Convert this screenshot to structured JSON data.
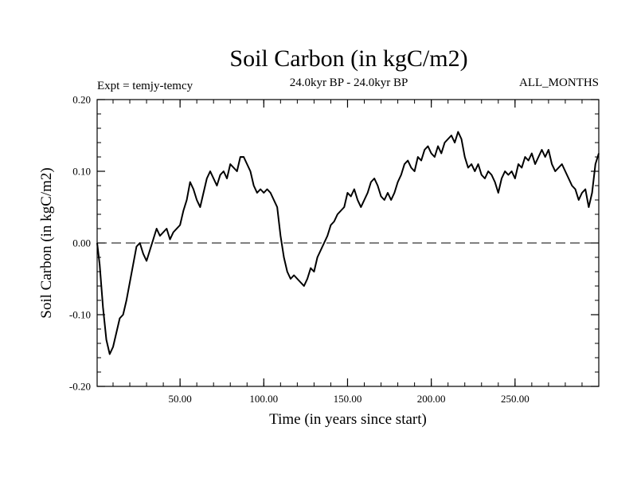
{
  "chart_data": {
    "type": "line",
    "title": "Soil Carbon (in kgC/m2)",
    "subtitle_left": "Expt = temjy-temcy",
    "subtitle_center": "24.0kyr BP - 24.0kyr BP",
    "subtitle_right": "ALL_MONTHS",
    "xlabel": "Time (in years since start)",
    "ylabel": "Soil Carbon (in kgC/m2)",
    "xlim": [
      0.5,
      300
    ],
    "ylim": [
      -0.2,
      0.2
    ],
    "x_ticks": [
      50,
      100,
      150,
      200,
      250
    ],
    "x_tick_labels": [
      "50.00",
      "100.00",
      "150.00",
      "200.00",
      "250.00"
    ],
    "x_minor_step": 10,
    "y_ticks": [
      -0.2,
      -0.1,
      0.0,
      0.1,
      0.2
    ],
    "y_tick_labels": [
      "-0.20",
      "-0.10",
      "0.00",
      "0.10",
      "0.20"
    ],
    "y_minor_step": 0.02,
    "reference_line": {
      "y": 0.0,
      "style": "dashed"
    },
    "grid": false,
    "colors": {
      "line": "#000000",
      "axes": "#000000",
      "background": "#ffffff"
    },
    "series": [
      {
        "name": "Soil Carbon",
        "x": [
          0.5,
          2,
          4,
          6,
          8,
          10,
          12,
          14,
          16,
          18,
          20,
          22,
          24,
          26,
          28,
          30,
          32,
          34,
          36,
          38,
          40,
          42,
          44,
          46,
          48,
          50,
          52,
          54,
          56,
          58,
          60,
          62,
          64,
          66,
          68,
          70,
          72,
          74,
          76,
          78,
          80,
          82,
          84,
          86,
          88,
          90,
          92,
          94,
          96,
          98,
          100,
          102,
          104,
          106,
          108,
          110,
          112,
          114,
          116,
          118,
          120,
          122,
          124,
          126,
          128,
          130,
          132,
          134,
          136,
          138,
          140,
          142,
          144,
          146,
          148,
          150,
          152,
          154,
          156,
          158,
          160,
          162,
          164,
          166,
          168,
          170,
          172,
          174,
          176,
          178,
          180,
          182,
          184,
          186,
          188,
          190,
          192,
          194,
          196,
          198,
          200,
          202,
          204,
          206,
          208,
          210,
          212,
          214,
          216,
          218,
          220,
          222,
          224,
          226,
          228,
          230,
          232,
          234,
          236,
          238,
          240,
          242,
          244,
          246,
          248,
          250,
          252,
          254,
          256,
          258,
          260,
          262,
          264,
          266,
          268,
          270,
          272,
          274,
          276,
          278,
          280,
          282,
          284,
          286,
          288,
          290,
          292,
          294,
          296,
          298,
          300
        ],
        "values": [
          0.0,
          -0.03,
          -0.09,
          -0.135,
          -0.155,
          -0.145,
          -0.125,
          -0.105,
          -0.1,
          -0.08,
          -0.055,
          -0.03,
          -0.005,
          0.0,
          -0.015,
          -0.025,
          -0.01,
          0.005,
          0.02,
          0.01,
          0.015,
          0.02,
          0.005,
          0.015,
          0.02,
          0.025,
          0.045,
          0.06,
          0.085,
          0.075,
          0.06,
          0.05,
          0.07,
          0.09,
          0.1,
          0.09,
          0.08,
          0.095,
          0.1,
          0.09,
          0.11,
          0.105,
          0.1,
          0.12,
          0.12,
          0.11,
          0.1,
          0.08,
          0.07,
          0.075,
          0.07,
          0.075,
          0.07,
          0.06,
          0.05,
          0.01,
          -0.02,
          -0.04,
          -0.05,
          -0.045,
          -0.05,
          -0.055,
          -0.06,
          -0.05,
          -0.035,
          -0.04,
          -0.02,
          -0.01,
          0.0,
          0.01,
          0.025,
          0.03,
          0.04,
          0.045,
          0.05,
          0.07,
          0.065,
          0.075,
          0.06,
          0.05,
          0.06,
          0.07,
          0.085,
          0.09,
          0.08,
          0.065,
          0.06,
          0.07,
          0.06,
          0.07,
          0.085,
          0.095,
          0.11,
          0.115,
          0.105,
          0.1,
          0.12,
          0.115,
          0.13,
          0.135,
          0.125,
          0.12,
          0.135,
          0.125,
          0.14,
          0.145,
          0.15,
          0.14,
          0.155,
          0.145,
          0.12,
          0.105,
          0.11,
          0.1,
          0.11,
          0.095,
          0.09,
          0.1,
          0.095,
          0.085,
          0.07,
          0.09,
          0.1,
          0.095,
          0.1,
          0.09,
          0.11,
          0.105,
          0.12,
          0.115,
          0.125,
          0.11,
          0.12,
          0.13,
          0.12,
          0.13,
          0.11,
          0.1,
          0.105,
          0.11,
          0.1,
          0.09,
          0.08,
          0.075,
          0.06,
          0.07,
          0.075,
          0.05,
          0.07,
          0.11,
          0.125
        ]
      }
    ]
  }
}
